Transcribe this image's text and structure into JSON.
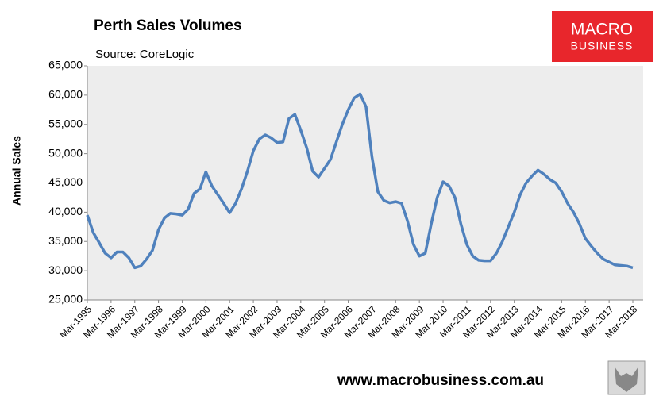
{
  "chart_data": {
    "type": "line",
    "title": "Perth Sales Volumes",
    "subtitle": "Source: CoreLogic",
    "y_label": "Annual Sales",
    "categories": [
      "Mar-1995",
      null,
      null,
      null,
      "Mar-1996",
      null,
      null,
      null,
      "Mar-1997",
      null,
      null,
      null,
      "Mar-1998",
      null,
      null,
      null,
      "Mar-1999",
      null,
      null,
      null,
      "Mar-2000",
      null,
      null,
      null,
      "Mar-2001",
      null,
      null,
      null,
      "Mar-2002",
      null,
      null,
      null,
      "Mar-2003",
      null,
      null,
      null,
      "Mar-2004",
      null,
      null,
      null,
      "Mar-2005",
      null,
      null,
      null,
      "Mar-2006",
      null,
      null,
      null,
      "Mar-2007",
      null,
      null,
      null,
      "Mar-2008",
      null,
      null,
      null,
      "Mar-2009",
      null,
      null,
      null,
      "Mar-2010",
      null,
      null,
      null,
      "Mar-2011",
      null,
      null,
      null,
      "Mar-2012",
      null,
      null,
      null,
      "Mar-2013",
      null,
      null,
      null,
      "Mar-2014",
      null,
      null,
      null,
      "Mar-2015",
      null,
      null,
      null,
      "Mar-2016",
      null,
      null,
      null,
      "Mar-2017",
      null,
      null,
      null,
      "Mar-2018"
    ],
    "series": [
      {
        "name": "Annual Sales",
        "color": "#4f81bd",
        "values": [
          39500,
          36500,
          34800,
          33000,
          32200,
          33200,
          33200,
          32200,
          30500,
          30800,
          32000,
          33500,
          37000,
          39000,
          39800,
          39700,
          39500,
          40500,
          43200,
          44000,
          46900,
          44500,
          43000,
          41500,
          39900,
          41500,
          44000,
          47000,
          50500,
          52500,
          53200,
          52700,
          51900,
          52000,
          56000,
          56700,
          54000,
          51000,
          47000,
          46000,
          47500,
          49000,
          52000,
          55000,
          57500,
          59500,
          60200,
          58000,
          49500,
          43500,
          42000,
          41600,
          41800,
          41500,
          38500,
          34500,
          32500,
          33000,
          38000,
          42500,
          45200,
          44500,
          42500,
          38000,
          34500,
          32500,
          31800,
          31700,
          31700,
          33000,
          35000,
          37500,
          40000,
          43000,
          45000,
          46200,
          47200,
          46500,
          45600,
          45000,
          43500,
          41500,
          40000,
          38000,
          35500,
          34200,
          33000,
          32000,
          31500,
          31000,
          30900,
          30800,
          30500
        ]
      }
    ],
    "ylim": [
      25000,
      65000
    ],
    "yticks": [
      {
        "value": 25000,
        "label": "25,000"
      },
      {
        "value": 30000,
        "label": "30,000"
      },
      {
        "value": 35000,
        "label": "35,000"
      },
      {
        "value": 40000,
        "label": "40,000"
      },
      {
        "value": 45000,
        "label": "45,000"
      },
      {
        "value": 50000,
        "label": "50,000"
      },
      {
        "value": 55000,
        "label": "55,000"
      },
      {
        "value": 60000,
        "label": "60,000"
      },
      {
        "value": 65000,
        "label": "65,000"
      }
    ],
    "grid": false
  },
  "branding": {
    "logo_top": "MACRO",
    "logo_bottom": "BUSINESS",
    "url": "www.macrobusiness.com.au"
  }
}
